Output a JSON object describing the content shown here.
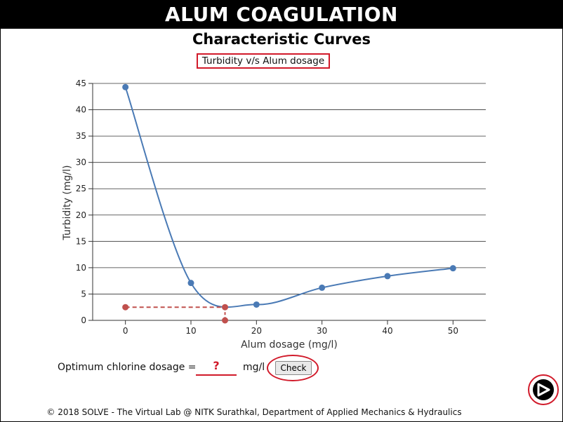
{
  "header": {
    "title": "ALUM COAGULATION"
  },
  "subtitle": "Characteristic Curves",
  "chart_caption": "Turbidity v/s Alum dosage",
  "answer": {
    "label": "Optimum chlorine dosage =",
    "placeholder": "?",
    "unit": "mg/l",
    "check_label": "Check"
  },
  "footer": "© 2018 SOLVE - The Virtual Lab @ NITK Surathkal, Department of Applied Mechanics & Hydraulics",
  "icons": {
    "next": "next-arrow-icon"
  },
  "colors": {
    "series": "#4a7ab5",
    "marker": "#c0504d",
    "accent": "#d11a2a"
  },
  "chart_data": {
    "type": "line",
    "xlabel": "Alum dosage (mg/l)",
    "ylabel": "Turbidity (mg/l)",
    "xlim": [
      -5,
      55
    ],
    "ylim": [
      0,
      45
    ],
    "xticks": [
      0,
      10,
      20,
      30,
      40,
      50
    ],
    "yticks": [
      0,
      5,
      10,
      15,
      20,
      25,
      30,
      35,
      40,
      45
    ],
    "grid": "horizontal",
    "series": [
      {
        "x": [
          0,
          10,
          20,
          30,
          40,
          50
        ],
        "y": [
          44.3,
          7.1,
          3.0,
          6.2,
          8.4,
          9.9
        ]
      }
    ],
    "optimum_marker": {
      "x": 15.2,
      "y": 2.5
    }
  }
}
